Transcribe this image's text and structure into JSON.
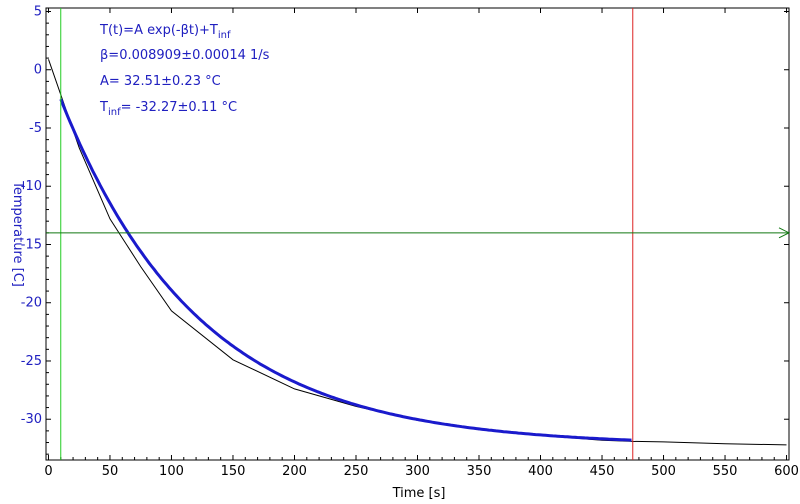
{
  "chart_data": {
    "type": "line",
    "title": "",
    "xlabel": "Time [s]",
    "ylabel": "Temperature [C]",
    "xlim": [
      -2,
      602
    ],
    "ylim": [
      -33.5,
      5.3
    ],
    "xticks": [
      0,
      50,
      100,
      150,
      200,
      250,
      300,
      350,
      400,
      450,
      500,
      550,
      600
    ],
    "yticks": [
      5,
      0,
      -5,
      -10,
      -15,
      -20,
      -25,
      -30
    ],
    "xtick_labels": [
      "0",
      "50",
      "100",
      "150",
      "200",
      "250",
      "300",
      "350",
      "400",
      "450",
      "500",
      "550",
      "600"
    ],
    "ytick_labels": [
      "5",
      "0",
      "-5",
      "-10",
      "-15",
      "-20",
      "-25",
      "-30"
    ],
    "grid": false,
    "fit": {
      "formula": "A*exp(-beta*t)+T_inf",
      "beta": 0.008909,
      "beta_err": 0.00014,
      "A": 32.51,
      "A_err": 0.23,
      "T_inf": -32.27,
      "T_inf_err": 0.11
    },
    "series": [
      {
        "name": "",
        "color": "#000000",
        "x": [
          0,
          25,
          50,
          75,
          100,
          150,
          200,
          250,
          300,
          350,
          400,
          450,
          475,
          500,
          550,
          600
        ],
        "y": [
          0.9,
          -6.7,
          -12.8,
          -16.9,
          -20.7,
          -24.9,
          -27.4,
          -28.9,
          -30.1,
          -30.9,
          -31.4,
          -31.8,
          -31.9,
          -31.95,
          -32.1,
          -32.2
        ]
      },
      {
        "name": "",
        "color": "#1a1acc",
        "x_range": [
          10,
          475
        ]
      }
    ],
    "markers": [
      {
        "orientation": "vertical",
        "x": 10,
        "color": "#22cc22"
      },
      {
        "orientation": "vertical",
        "x": 475,
        "color": "#dd2222"
      },
      {
        "orientation": "horizontal",
        "y": -14,
        "color": "#117711"
      }
    ]
  },
  "annotations": {
    "formula_prefix": "T(t)=A exp(-βt)+T",
    "formula_sub": "inf",
    "beta_line": "β=0.008909±0.00014 1/s",
    "a_line": "A= 32.51±0.23 °C",
    "tinf_prefix": "T",
    "tinf_sub": "inf",
    "tinf_rest": "= -32.27±0.11 °C"
  },
  "colors": {
    "axis_tick_text": "#2020c0",
    "data": "#000000",
    "fit": "#1a1acc",
    "left_marker": "#22cc22",
    "right_marker": "#dd2222",
    "hline": "#117711"
  }
}
